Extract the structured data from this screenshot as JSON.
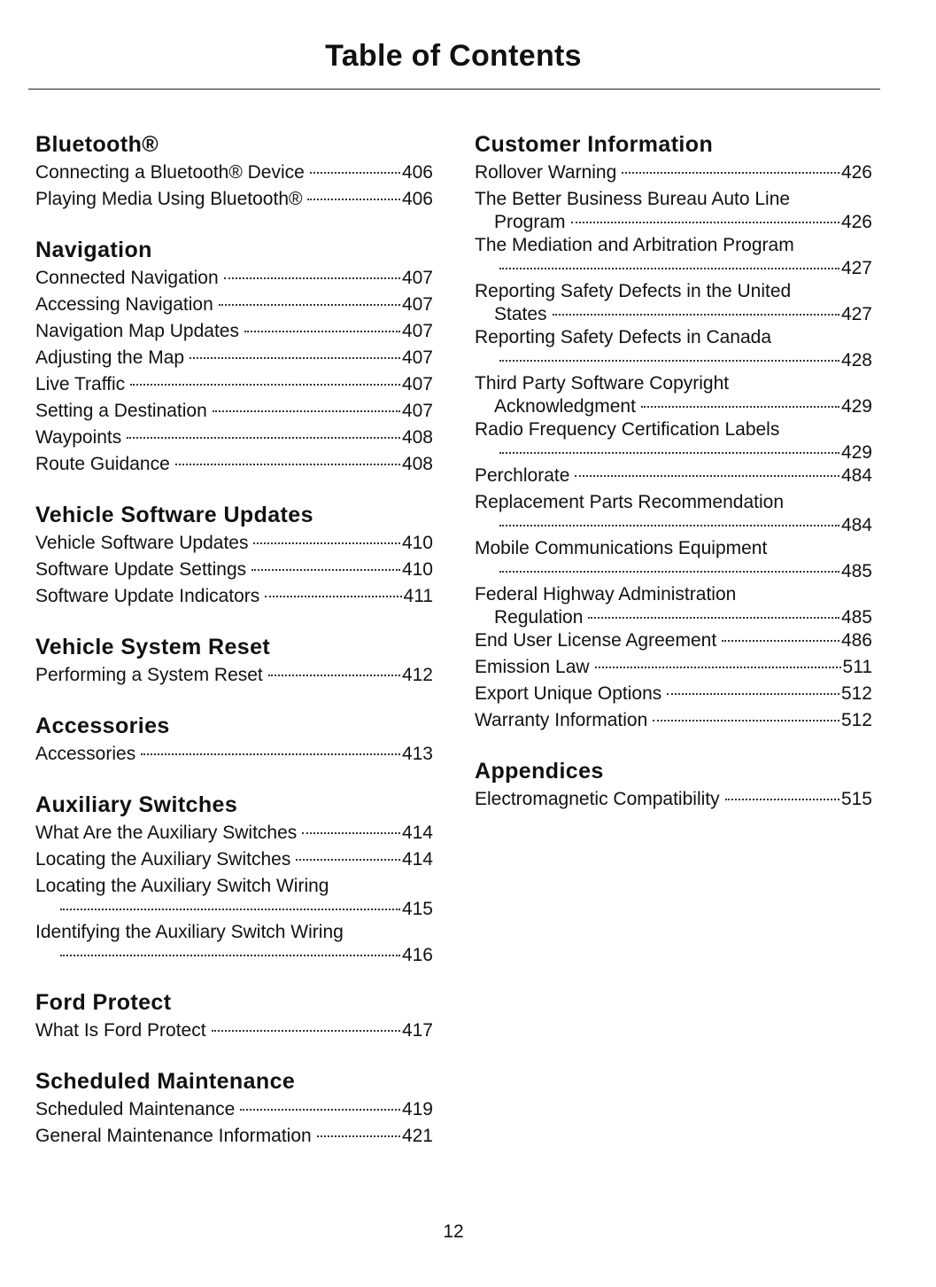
{
  "title": "Table of Contents",
  "page_number": "12",
  "left": [
    {
      "heading": "Bluetooth®",
      "entries": [
        {
          "title": "Connecting a Bluetooth® Device",
          "page": "406"
        },
        {
          "title": "Playing Media Using Bluetooth®",
          "page": "406"
        }
      ]
    },
    {
      "heading": "Navigation",
      "entries": [
        {
          "title": "Connected Navigation",
          "page": "407"
        },
        {
          "title": "Accessing Navigation",
          "page": "407"
        },
        {
          "title": "Navigation Map Updates",
          "page": "407"
        },
        {
          "title": "Adjusting the Map",
          "page": "407"
        },
        {
          "title": "Live Traffic",
          "page": "407"
        },
        {
          "title": "Setting a Destination",
          "page": "407"
        },
        {
          "title": "Waypoints",
          "page": "408"
        },
        {
          "title": "Route Guidance",
          "page": "408"
        }
      ]
    },
    {
      "heading": "Vehicle Software Updates",
      "entries": [
        {
          "title": "Vehicle Software Updates",
          "page": "410"
        },
        {
          "title": "Software Update Settings",
          "page": "410"
        },
        {
          "title": "Software Update Indicators",
          "page": "411"
        }
      ]
    },
    {
      "heading": "Vehicle System Reset",
      "entries": [
        {
          "title": "Performing a System Reset",
          "page": "412"
        }
      ]
    },
    {
      "heading": "Accessories",
      "entries": [
        {
          "title": "Accessories",
          "page": "413"
        }
      ]
    },
    {
      "heading": "Auxiliary Switches",
      "entries": [
        {
          "title": "What Are the Auxiliary Switches",
          "page": "414"
        },
        {
          "title": "Locating the Auxiliary Switches",
          "page": "414"
        },
        {
          "title": "Locating the Auxiliary Switch Wiring",
          "cont": "",
          "page": "415"
        },
        {
          "title": "Identifying the Auxiliary Switch Wiring",
          "cont": "",
          "page": "416"
        }
      ]
    },
    {
      "heading": "Ford Protect",
      "entries": [
        {
          "title": "What Is Ford Protect",
          "page": "417"
        }
      ]
    },
    {
      "heading": "Scheduled Maintenance",
      "entries": [
        {
          "title": "Scheduled Maintenance",
          "page": "419"
        },
        {
          "title": "General Maintenance Information",
          "page": "421"
        }
      ]
    }
  ],
  "right": [
    {
      "heading": "Customer Information",
      "entries": [
        {
          "title": "Rollover Warning",
          "page": "426"
        },
        {
          "title": "The Better Business Bureau Auto Line",
          "cont": "Program",
          "page": "426"
        },
        {
          "title": "The Mediation and Arbitration Program",
          "cont": "",
          "page": "427"
        },
        {
          "title": "Reporting Safety Defects in the United",
          "cont": "States",
          "page": "427"
        },
        {
          "title": "Reporting Safety Defects in Canada",
          "cont": "",
          "page": "428"
        },
        {
          "title": "Third Party Software Copyright",
          "cont": "Acknowledgment",
          "page": "429"
        },
        {
          "title": "Radio Frequency Certification Labels",
          "cont": "",
          "page": "429"
        },
        {
          "title": "Perchlorate",
          "page": "484"
        },
        {
          "title": "Replacement Parts Recommendation",
          "cont": "",
          "page": "484"
        },
        {
          "title": "Mobile Communications Equipment",
          "cont": "",
          "page": "485"
        },
        {
          "title": "Federal Highway Administration",
          "cont": "Regulation",
          "page": "485"
        },
        {
          "title": "End User License Agreement",
          "page": "486"
        },
        {
          "title": "Emission Law",
          "page": "511"
        },
        {
          "title": "Export Unique Options",
          "page": "512"
        },
        {
          "title": "Warranty Information",
          "page": "512"
        }
      ]
    },
    {
      "heading": "Appendices",
      "entries": [
        {
          "title": "Electromagnetic Compatibility",
          "page": "515"
        }
      ]
    }
  ]
}
